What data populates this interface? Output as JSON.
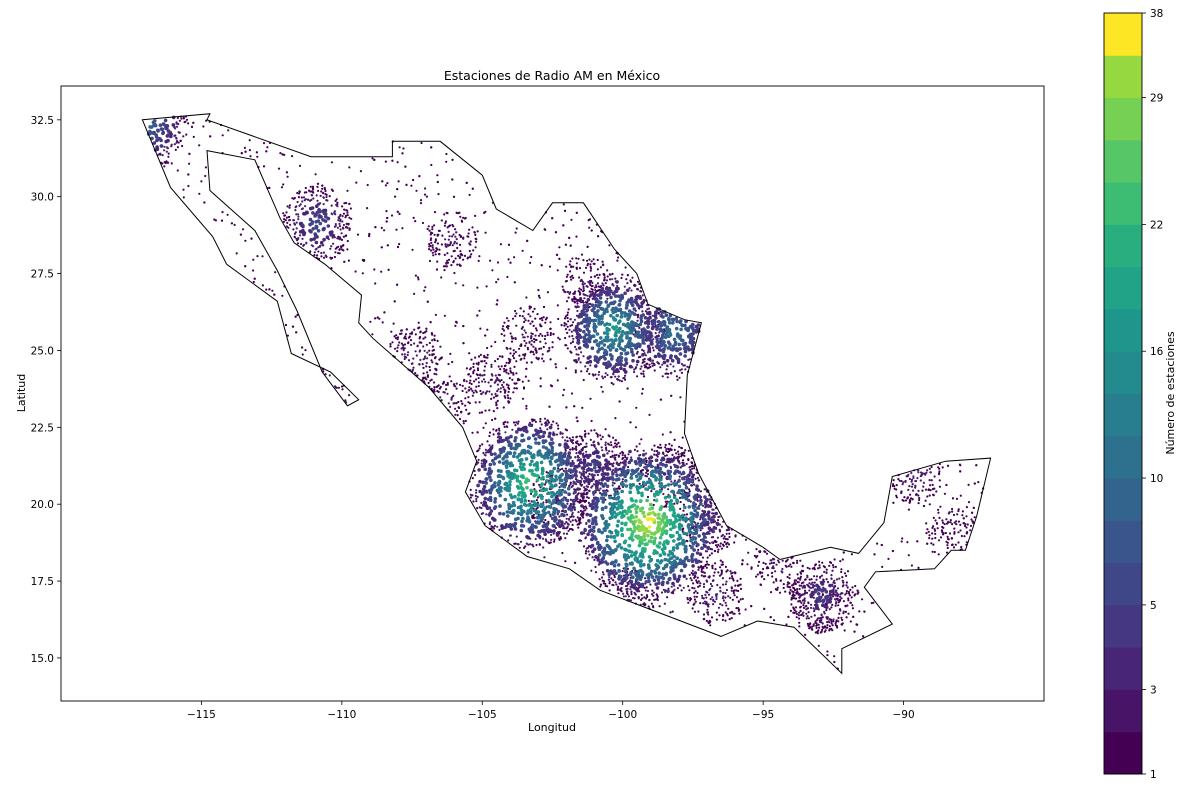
{
  "map": {
    "title": "Estaciones de Radio AM en México",
    "xlabel": "Longitud",
    "ylabel": "Latitud",
    "xlim": [
      -120,
      -85
    ],
    "ylim": [
      13.6,
      33.6
    ],
    "xticks": [
      {
        "value": -115,
        "label": "−115"
      },
      {
        "value": -110,
        "label": "−110"
      },
      {
        "value": -105,
        "label": "−105"
      },
      {
        "value": -100,
        "label": "−100"
      },
      {
        "value": -95,
        "label": "−95"
      },
      {
        "value": -90,
        "label": "−90"
      }
    ],
    "yticks": [
      {
        "value": 15.0,
        "label": "15.0"
      },
      {
        "value": 17.5,
        "label": "17.5"
      },
      {
        "value": 20.0,
        "label": "20.0"
      },
      {
        "value": 22.5,
        "label": "22.5"
      },
      {
        "value": 25.0,
        "label": "25.0"
      },
      {
        "value": 27.5,
        "label": "27.5"
      },
      {
        "value": 30.0,
        "label": "30.0"
      },
      {
        "value": 32.5,
        "label": "32.5"
      }
    ],
    "outline": [
      [
        -117.1,
        32.5
      ],
      [
        -114.7,
        32.7
      ],
      [
        -114.8,
        32.5
      ],
      [
        -111.1,
        31.3
      ],
      [
        -108.2,
        31.3
      ],
      [
        -108.2,
        31.8
      ],
      [
        -106.5,
        31.8
      ],
      [
        -105.0,
        30.7
      ],
      [
        -104.5,
        29.6
      ],
      [
        -103.2,
        28.9
      ],
      [
        -102.5,
        29.8
      ],
      [
        -101.4,
        29.8
      ],
      [
        -100.3,
        28.3
      ],
      [
        -99.5,
        27.5
      ],
      [
        -99.1,
        26.5
      ],
      [
        -97.8,
        26.0
      ],
      [
        -97.2,
        25.9
      ],
      [
        -97.7,
        24.2
      ],
      [
        -97.8,
        22.3
      ],
      [
        -97.3,
        21.0
      ],
      [
        -96.3,
        19.3
      ],
      [
        -95.0,
        18.6
      ],
      [
        -94.4,
        18.2
      ],
      [
        -92.6,
        18.6
      ],
      [
        -91.6,
        18.4
      ],
      [
        -90.7,
        19.4
      ],
      [
        -90.4,
        20.9
      ],
      [
        -88.5,
        21.4
      ],
      [
        -86.9,
        21.5
      ],
      [
        -87.4,
        19.6
      ],
      [
        -87.8,
        18.5
      ],
      [
        -88.3,
        18.5
      ],
      [
        -88.9,
        17.9
      ],
      [
        -91.0,
        17.8
      ],
      [
        -91.4,
        17.3
      ],
      [
        -90.4,
        16.1
      ],
      [
        -92.2,
        15.3
      ],
      [
        -92.2,
        14.5
      ],
      [
        -93.9,
        16.0
      ],
      [
        -95.2,
        16.2
      ],
      [
        -96.5,
        15.7
      ],
      [
        -98.5,
        16.4
      ],
      [
        -100.8,
        17.2
      ],
      [
        -101.9,
        17.9
      ],
      [
        -103.4,
        18.3
      ],
      [
        -104.9,
        19.3
      ],
      [
        -105.6,
        20.4
      ],
      [
        -105.2,
        21.4
      ],
      [
        -105.7,
        22.5
      ],
      [
        -106.9,
        23.8
      ],
      [
        -108.9,
        25.4
      ],
      [
        -109.4,
        25.9
      ],
      [
        -109.3,
        26.8
      ],
      [
        -110.6,
        27.8
      ],
      [
        -111.7,
        28.5
      ],
      [
        -112.2,
        29.3
      ],
      [
        -113.1,
        31.2
      ],
      [
        -114.8,
        31.5
      ],
      [
        -114.7,
        30.2
      ],
      [
        -113.1,
        28.9
      ],
      [
        -112.3,
        27.6
      ],
      [
        -111.6,
        26.3
      ],
      [
        -110.7,
        24.3
      ],
      [
        -109.8,
        23.2
      ],
      [
        -109.4,
        23.4
      ],
      [
        -110.4,
        24.3
      ],
      [
        -111.8,
        24.9
      ],
      [
        -112.3,
        26.6
      ],
      [
        -114.1,
        27.8
      ],
      [
        -114.6,
        28.7
      ],
      [
        -116.1,
        30.3
      ],
      [
        -117.1,
        32.5
      ]
    ],
    "station_clusters": [
      {
        "lon": -99.1,
        "lat": 19.4,
        "count": 38
      },
      {
        "lon": -103.3,
        "lat": 20.7,
        "count": 30
      },
      {
        "lon": -100.3,
        "lat": 25.7,
        "count": 22
      },
      {
        "lon": -98.2,
        "lat": 25.6,
        "count": 16
      },
      {
        "lon": -116.9,
        "lat": 32.4,
        "count": 14
      },
      {
        "lon": -110.9,
        "lat": 29.1,
        "count": 10
      },
      {
        "lon": -101.0,
        "lat": 21.2,
        "count": 9
      },
      {
        "lon": -92.9,
        "lat": 17.0,
        "count": 8
      },
      {
        "lon": -96.9,
        "lat": 19.5,
        "count": 7
      },
      {
        "lon": -98.4,
        "lat": 20.9,
        "count": 6
      },
      {
        "lon": -102.3,
        "lat": 20.1,
        "count": 6
      },
      {
        "lon": -99.9,
        "lat": 16.9,
        "count": 5
      },
      {
        "lon": -96.7,
        "lat": 17.1,
        "count": 5
      },
      {
        "lon": -89.6,
        "lat": 21.0,
        "count": 5
      },
      {
        "lon": -106.4,
        "lat": 23.2,
        "count": 4
      },
      {
        "lon": -104.7,
        "lat": 24.0,
        "count": 4
      },
      {
        "lon": -107.4,
        "lat": 24.8,
        "count": 4
      },
      {
        "lon": -106.1,
        "lat": 28.6,
        "count": 3
      },
      {
        "lon": -103.4,
        "lat": 25.5,
        "count": 3
      },
      {
        "lon": -101.3,
        "lat": 27.2,
        "count": 3
      },
      {
        "lon": -110.3,
        "lat": 24.1,
        "count": 3
      },
      {
        "lon": -94.5,
        "lat": 18.0,
        "count": 3
      },
      {
        "lon": -93.1,
        "lat": 16.7,
        "count": 3
      },
      {
        "lon": -88.3,
        "lat": 19.0,
        "count": 2
      }
    ]
  },
  "colorbar": {
    "label": "Número de estaciones",
    "min": 1,
    "max": 38,
    "ticks": [
      {
        "value": 1,
        "label": "1"
      },
      {
        "value": 3,
        "label": "3"
      },
      {
        "value": 5,
        "label": "5"
      },
      {
        "value": 10,
        "label": "10"
      },
      {
        "value": 16,
        "label": "16"
      },
      {
        "value": 22,
        "label": "22"
      },
      {
        "value": 29,
        "label": "29"
      },
      {
        "value": 38,
        "label": "38"
      }
    ],
    "colors": [
      "#440154",
      "#481467",
      "#482576",
      "#453781",
      "#3f4788",
      "#39558c",
      "#32648e",
      "#2d718e",
      "#287d8e",
      "#238a8d",
      "#1f968b",
      "#20a386",
      "#29af7f",
      "#3dbc74",
      "#56c667",
      "#75d054",
      "#95d840",
      "#fde725"
    ]
  }
}
